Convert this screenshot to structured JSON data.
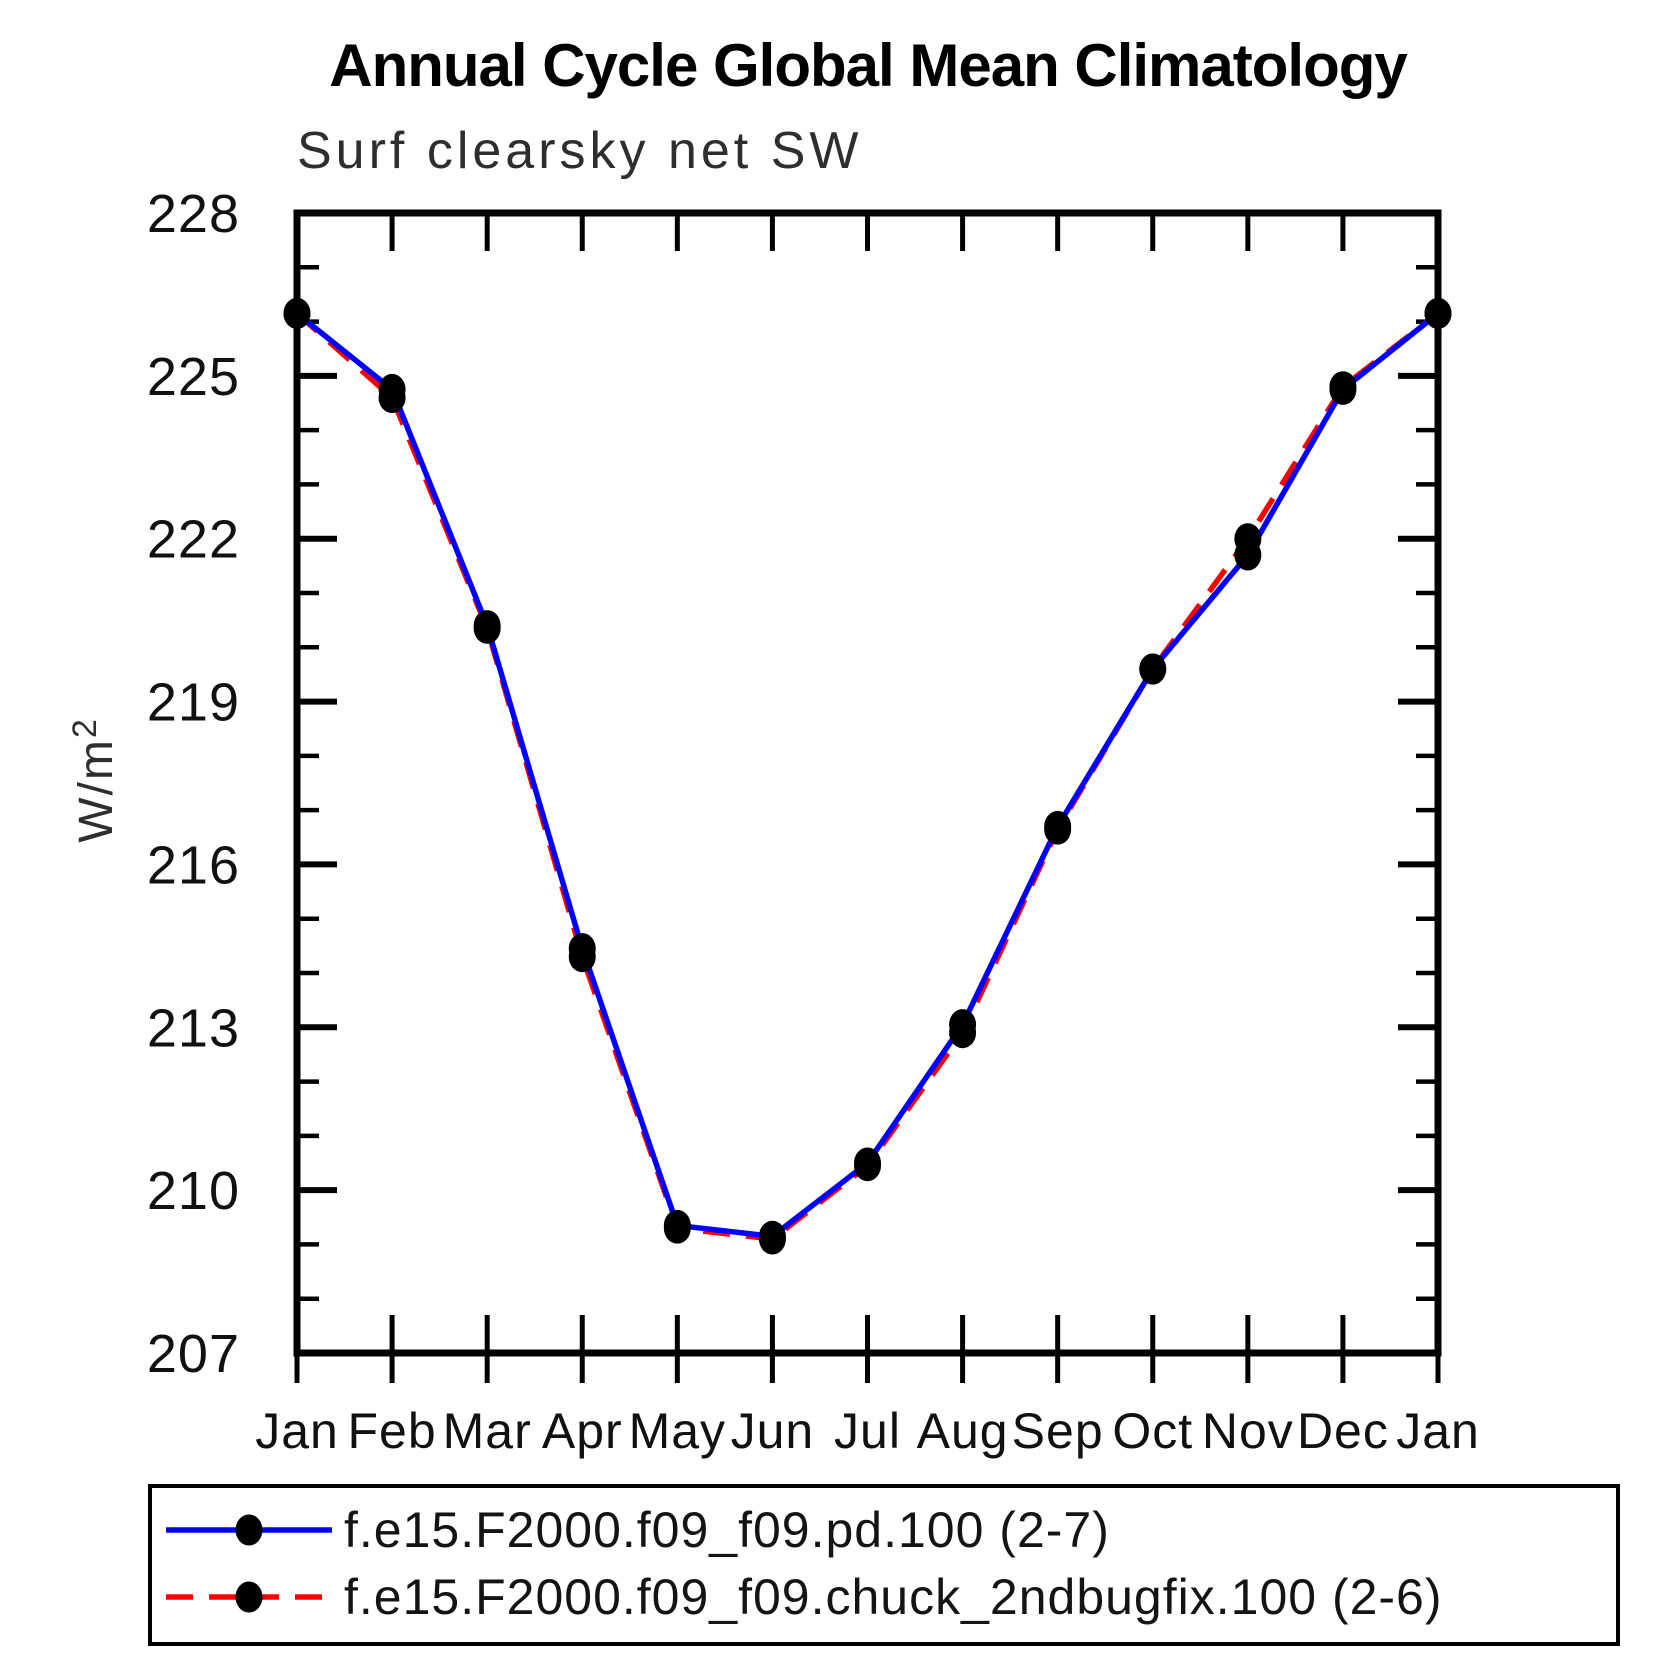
{
  "page": {
    "background": "#ffffff"
  },
  "chart_data": {
    "type": "line",
    "title": "Annual Cycle Global Mean Climatology",
    "subtitle": "Surf clearsky net SW",
    "ylabel": {
      "main": "W/m",
      "superscript": "2"
    },
    "x_categories": [
      "Jan",
      "Feb",
      "Mar",
      "Apr",
      "May",
      "Jun",
      "Jul",
      "Aug",
      "Sep",
      "Oct",
      "Nov",
      "Dec",
      "Jan"
    ],
    "y_axis": {
      "min": 207,
      "max": 228,
      "major_tick_step": 3,
      "minor_tick_step": 1,
      "tick_labels": [
        "228",
        "225",
        "222",
        "219",
        "216",
        "213",
        "210",
        "207"
      ],
      "unit": "W/m2"
    },
    "grid": "off",
    "legend_position": "bottom",
    "series": [
      {
        "name": "f.e15.F2000.f09_f09.pd.100 (2-7)",
        "color": "#0000ff",
        "line_style": "solid",
        "marker": "filled-circle",
        "marker_color": "#000000",
        "values": [
          226.15,
          224.75,
          220.4,
          214.45,
          209.35,
          209.15,
          210.5,
          213.05,
          216.7,
          219.6,
          221.7,
          224.75,
          226.15
        ]
      },
      {
        "name": "f.e15.F2000.f09_f09.chuck_2ndbugfix.100 (2-6)",
        "color": "#ff0000",
        "line_style": "dashed",
        "marker": "filled-circle",
        "marker_color": "#000000",
        "values": [
          226.15,
          224.6,
          220.35,
          214.3,
          209.3,
          209.1,
          210.45,
          212.9,
          216.65,
          219.6,
          222.0,
          224.8,
          226.15
        ]
      }
    ]
  }
}
